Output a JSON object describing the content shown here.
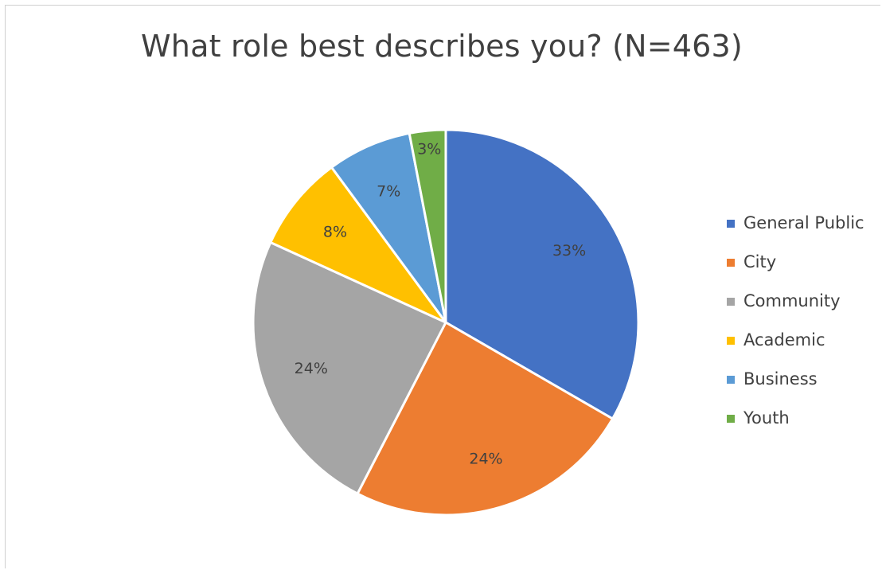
{
  "chart_data": {
    "type": "pie",
    "title": "What role best describes you? (N=463)",
    "categories": [
      "General Public",
      "City",
      "Community",
      "Academic",
      "Business",
      "Youth"
    ],
    "values": [
      33,
      24,
      24,
      8,
      7,
      3
    ],
    "data_labels": [
      "33%",
      "24%",
      "24%",
      "8%",
      "7%",
      "3%"
    ],
    "colors": [
      "#4472C4",
      "#ED7D31",
      "#A5A5A5",
      "#FFC000",
      "#5B9BD5",
      "#70AD47"
    ],
    "legend_position": "right",
    "start_angle": "12 o'clock",
    "direction": "clockwise"
  }
}
